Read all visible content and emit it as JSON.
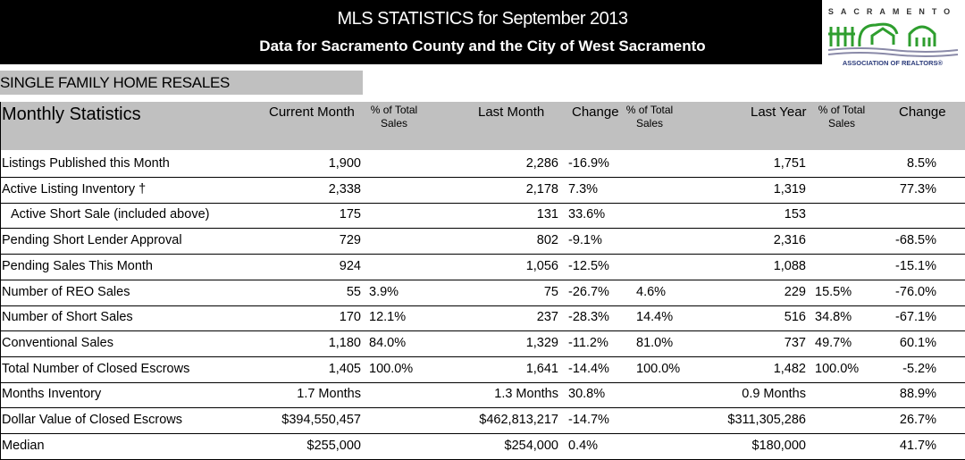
{
  "header": {
    "title": "MLS STATISTICS for September 2013",
    "subtitle": "Data for Sacramento County and the City of West Sacramento",
    "logo": {
      "top": "SACRAMENTO",
      "bottom": "ASSOCIATION OF REALTORS®",
      "color": "#2e9e2e"
    }
  },
  "section": "SINGLE FAMILY HOME RESALES",
  "table_header": {
    "title": "Monthly Statistics",
    "current_month": "Current Month",
    "last_month": "Last Month",
    "last_year": "Last Year",
    "change": "Change",
    "pct_top": "% of  Total",
    "pct_bottom": "Sales"
  },
  "rows": [
    {
      "label": "Listings Published this Month",
      "cm": "1,900",
      "cp": "",
      "lm": "2,286",
      "ch": "-16.9%",
      "lp": "",
      "ly": "1,751",
      "yp": "",
      "yc": "8.5%"
    },
    {
      "label": "Active Listing Inventory †",
      "cm": "2,338",
      "cp": "",
      "lm": "2,178",
      "ch": "7.3%",
      "lp": "",
      "ly": "1,319",
      "yp": "",
      "yc": "77.3%"
    },
    {
      "label": "Active Short Sale (included above)",
      "cm": "175",
      "cp": "",
      "lm": "131",
      "ch": "33.6%",
      "lp": "",
      "ly": "153",
      "yp": "",
      "yc": ""
    },
    {
      "label": "Pending Short Lender Approval",
      "cm": "729",
      "cp": "",
      "lm": "802",
      "ch": "-9.1%",
      "lp": "",
      "ly": "2,316",
      "yp": "",
      "yc": "-68.5%"
    },
    {
      "label": "Pending Sales This Month",
      "cm": "924",
      "cp": "",
      "lm": "1,056",
      "ch": "-12.5%",
      "lp": "",
      "ly": "1,088",
      "yp": "",
      "yc": "-15.1%"
    },
    {
      "label": "Number of REO Sales",
      "cm": "55",
      "cp": "3.9%",
      "lm": "75",
      "ch": "-26.7%",
      "lp": "4.6%",
      "ly": "229",
      "yp": "15.5%",
      "yc": "-76.0%"
    },
    {
      "label": "Number of Short Sales",
      "cm": "170",
      "cp": "12.1%",
      "lm": "237",
      "ch": "-28.3%",
      "lp": "14.4%",
      "ly": "516",
      "yp": "34.8%",
      "yc": "-67.1%"
    },
    {
      "label": "Conventional Sales",
      "cm": "1,180",
      "cp": "84.0%",
      "lm": "1,329",
      "ch": "-11.2%",
      "lp": "81.0%",
      "ly": "737",
      "yp": "49.7%",
      "yc": "60.1%"
    },
    {
      "label": "Total Number of Closed Escrows",
      "cm": "1,405",
      "cp": "100.0%",
      "lm": "1,641",
      "ch": "-14.4%",
      "lp": "100.0%",
      "ly": "1,482",
      "yp": "100.0%",
      "yc": "-5.2%"
    },
    {
      "label": "Months Inventory",
      "cm": "1.7 Months",
      "cp": "",
      "lm": "1.3 Months",
      "ch": "30.8%",
      "lp": "",
      "ly": "0.9 Months",
      "yp": "",
      "yc": "88.9%"
    },
    {
      "label": "Dollar Value of Closed Escrows",
      "cm": "$394,550,457",
      "cp": "",
      "lm": "$462,813,217",
      "ch": "-14.7%",
      "lp": "",
      "ly": "$311,305,286",
      "yp": "",
      "yc": "26.7%"
    },
    {
      "label": "Median",
      "cm": "$255,000",
      "cp": "",
      "lm": "$254,000",
      "ch": "0.4%",
      "lp": "",
      "ly": "$180,000",
      "yp": "",
      "yc": "41.7%"
    }
  ]
}
